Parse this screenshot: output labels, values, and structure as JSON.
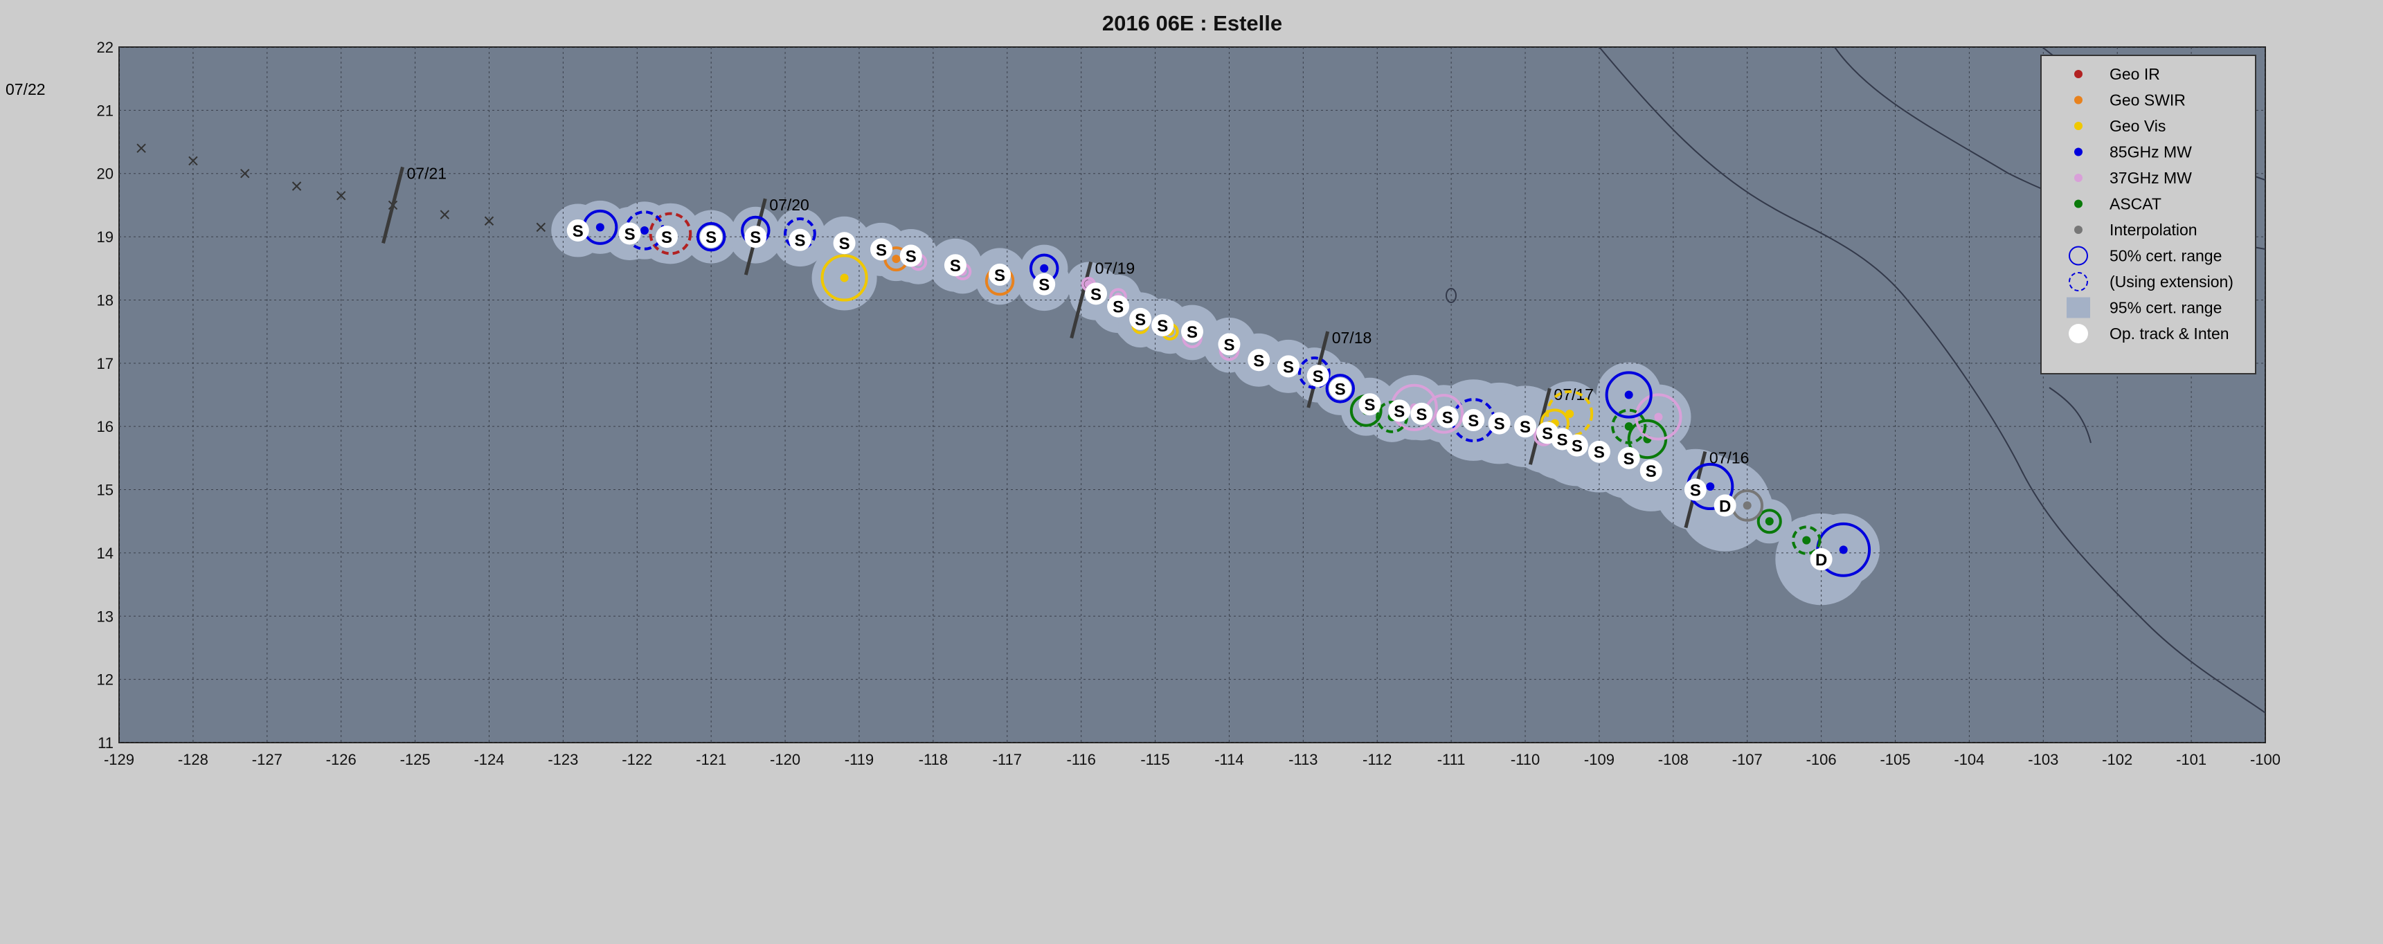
{
  "chart_data": {
    "type": "scatter",
    "title": "2016  06E :  Estelle",
    "corner_label": "07/22",
    "xlim": [
      -129,
      -100
    ],
    "ylim": [
      11,
      22
    ],
    "x_ticks": [
      "-129",
      "-128",
      "-127",
      "-126",
      "-125",
      "-124",
      "-123",
      "-122",
      "-121",
      "-120",
      "-119",
      "-118",
      "-117",
      "-116",
      "-115",
      "-114",
      "-113",
      "-112",
      "-111",
      "-110",
      "-109",
      "-108",
      "-107",
      "-106",
      "-105",
      "-104",
      "-103",
      "-102",
      "-101",
      "-100"
    ],
    "y_ticks": [
      "11",
      "12",
      "13",
      "14",
      "15",
      "16",
      "17",
      "18",
      "19",
      "20",
      "21",
      "22"
    ],
    "grid": true,
    "legend_position": "top-right",
    "colors": {
      "background": "#cccccc",
      "ocean": "#717d8e",
      "envelope": "#a4b1c6",
      "geo_ir": "#b22222",
      "geo_swir": "#e8821e",
      "geo_vis": "#f0c800",
      "mw85": "#0000dd",
      "mw37": "#d9a0d9",
      "ascat": "#0a7a0a",
      "interp": "#777777",
      "optrack": "#ffffff"
    },
    "legend": [
      {
        "label": "Geo IR",
        "key": "geo_ir",
        "symbol": "dot"
      },
      {
        "label": "Geo SWIR",
        "key": "geo_swir",
        "symbol": "dot"
      },
      {
        "label": "Geo Vis",
        "key": "geo_vis",
        "symbol": "dot"
      },
      {
        "label": "85GHz MW",
        "key": "mw85",
        "symbol": "dot"
      },
      {
        "label": "37GHz MW",
        "key": "mw37",
        "symbol": "dot"
      },
      {
        "label": "ASCAT",
        "key": "ascat",
        "symbol": "dot"
      },
      {
        "label": "Interpolation",
        "key": "interp",
        "symbol": "dot"
      },
      {
        "label": "50% cert. range",
        "key": "mw85",
        "symbol": "circle"
      },
      {
        "label": "(Using extension)",
        "key": "mw85",
        "symbol": "dashed-circle"
      },
      {
        "label": "95% cert. range",
        "key": "envelope",
        "symbol": "square"
      },
      {
        "label": "Op. track & Inten",
        "key": "optrack",
        "symbol": "big-dot"
      }
    ],
    "day_markers": [
      {
        "label": "07/16",
        "x": -107.7,
        "y": 15.0
      },
      {
        "label": "07/17",
        "x": -109.8,
        "y": 16.0
      },
      {
        "label": "07/18",
        "x": -112.8,
        "y": 16.9
      },
      {
        "label": "07/19",
        "x": -116.0,
        "y": 18.0
      },
      {
        "label": "07/20",
        "x": -120.4,
        "y": 19.0
      },
      {
        "label": "07/21",
        "x": -125.3,
        "y": 19.5
      }
    ],
    "op_track": [
      {
        "x": -106.0,
        "y": 13.9,
        "label": "D"
      },
      {
        "x": -107.3,
        "y": 14.75,
        "label": "D"
      },
      {
        "x": -107.7,
        "y": 15.0,
        "label": "S"
      },
      {
        "x": -108.3,
        "y": 15.3,
        "label": "S"
      },
      {
        "x": -108.6,
        "y": 15.5,
        "label": "S"
      },
      {
        "x": -109.0,
        "y": 15.6,
        "label": "S"
      },
      {
        "x": -109.3,
        "y": 15.7,
        "label": "S"
      },
      {
        "x": -109.5,
        "y": 15.8,
        "label": "S"
      },
      {
        "x": -109.7,
        "y": 15.9,
        "label": "S"
      },
      {
        "x": -110.0,
        "y": 16.0,
        "label": "S"
      },
      {
        "x": -110.35,
        "y": 16.05,
        "label": "S"
      },
      {
        "x": -110.7,
        "y": 16.1,
        "label": "S"
      },
      {
        "x": -111.05,
        "y": 16.15,
        "label": "S"
      },
      {
        "x": -111.4,
        "y": 16.2,
        "label": "S"
      },
      {
        "x": -111.7,
        "y": 16.25,
        "label": "S"
      },
      {
        "x": -112.1,
        "y": 16.35,
        "label": "S"
      },
      {
        "x": -112.5,
        "y": 16.6,
        "label": "S"
      },
      {
        "x": -112.8,
        "y": 16.8,
        "label": "S"
      },
      {
        "x": -113.2,
        "y": 16.95,
        "label": "S"
      },
      {
        "x": -113.6,
        "y": 17.05,
        "label": "S"
      },
      {
        "x": -114.0,
        "y": 17.3,
        "label": "S"
      },
      {
        "x": -114.5,
        "y": 17.5,
        "label": "S"
      },
      {
        "x": -114.9,
        "y": 17.6,
        "label": "S"
      },
      {
        "x": -115.2,
        "y": 17.7,
        "label": "S"
      },
      {
        "x": -115.5,
        "y": 17.9,
        "label": "S"
      },
      {
        "x": -115.8,
        "y": 18.1,
        "label": "S"
      },
      {
        "x": -116.5,
        "y": 18.25,
        "label": "S"
      },
      {
        "x": -117.1,
        "y": 18.4,
        "label": "S"
      },
      {
        "x": -117.7,
        "y": 18.55,
        "label": "S"
      },
      {
        "x": -118.3,
        "y": 18.7,
        "label": "S"
      },
      {
        "x": -118.7,
        "y": 18.8,
        "label": "S"
      },
      {
        "x": -119.2,
        "y": 18.9,
        "label": "S"
      },
      {
        "x": -119.8,
        "y": 18.95,
        "label": "S"
      },
      {
        "x": -120.4,
        "y": 19.0,
        "label": "S"
      },
      {
        "x": -121.0,
        "y": 19.0,
        "label": "S"
      },
      {
        "x": -121.6,
        "y": 19.0,
        "label": "S"
      },
      {
        "x": -122.1,
        "y": 19.05,
        "label": "S"
      },
      {
        "x": -122.8,
        "y": 19.1,
        "label": "S"
      }
    ],
    "extrapolated_track": [
      {
        "x": -123.3,
        "y": 19.15
      },
      {
        "x": -124.0,
        "y": 19.25
      },
      {
        "x": -124.6,
        "y": 19.35
      },
      {
        "x": -125.3,
        "y": 19.5
      },
      {
        "x": -126.0,
        "y": 19.65
      },
      {
        "x": -126.6,
        "y": 19.8
      },
      {
        "x": -127.3,
        "y": 20.0
      },
      {
        "x": -128.0,
        "y": 20.2
      },
      {
        "x": -128.7,
        "y": 20.4
      }
    ],
    "fixes": [
      {
        "type": "mw85",
        "x": -105.7,
        "y": 14.05,
        "r": 0.35,
        "dashed": false
      },
      {
        "type": "ascat",
        "x": -106.2,
        "y": 14.2,
        "r": 0.18,
        "dashed": true
      },
      {
        "type": "ascat",
        "x": -106.7,
        "y": 14.5,
        "r": 0.15,
        "dashed": false
      },
      {
        "type": "interp",
        "x": -107.0,
        "y": 14.75,
        "r": 0.2,
        "dashed": false
      },
      {
        "type": "mw85",
        "x": -107.5,
        "y": 15.05,
        "r": 0.3,
        "dashed": false
      },
      {
        "type": "ascat",
        "x": -108.35,
        "y": 15.8,
        "r": 0.25,
        "dashed": false
      },
      {
        "type": "mw37",
        "x": -108.2,
        "y": 16.15,
        "r": 0.3,
        "dashed": false
      },
      {
        "type": "ascat",
        "x": -108.6,
        "y": 16.0,
        "r": 0.22,
        "dashed": true
      },
      {
        "type": "mw85",
        "x": -108.6,
        "y": 16.5,
        "r": 0.3,
        "dashed": false
      },
      {
        "type": "geo_vis",
        "x": -109.4,
        "y": 16.2,
        "r": 0.3,
        "dashed": true
      },
      {
        "type": "geo_vis",
        "x": -109.6,
        "y": 16.05,
        "r": 0.18,
        "dashed": false
      },
      {
        "type": "mw37",
        "x": -109.75,
        "y": 15.85,
        "r": 0.12,
        "dashed": false
      },
      {
        "type": "mw85",
        "x": -110.7,
        "y": 16.1,
        "r": 0.28,
        "dashed": true
      },
      {
        "type": "mw37",
        "x": -111.1,
        "y": 16.2,
        "r": 0.25,
        "dashed": false
      },
      {
        "type": "mw37",
        "x": -111.5,
        "y": 16.3,
        "r": 0.3,
        "dashed": false
      },
      {
        "type": "ascat",
        "x": -111.8,
        "y": 16.15,
        "r": 0.2,
        "dashed": true
      },
      {
        "type": "ascat",
        "x": -112.15,
        "y": 16.25,
        "r": 0.2,
        "dashed": false
      },
      {
        "type": "mw85",
        "x": -112.5,
        "y": 16.6,
        "r": 0.18,
        "dashed": false
      },
      {
        "type": "mw85",
        "x": -112.85,
        "y": 16.85,
        "r": 0.2,
        "dashed": true
      },
      {
        "type": "ascat",
        "x": -113.2,
        "y": 16.95,
        "r": 0.12,
        "dashed": false
      },
      {
        "type": "ascat",
        "x": -113.6,
        "y": 17.05,
        "r": 0.12,
        "dashed": false
      },
      {
        "type": "mw37",
        "x": -114.0,
        "y": 17.2,
        "r": 0.12,
        "dashed": false
      },
      {
        "type": "mw37",
        "x": -114.5,
        "y": 17.4,
        "r": 0.12,
        "dashed": false
      },
      {
        "type": "geo_vis",
        "x": -114.8,
        "y": 17.5,
        "r": 0.1,
        "dashed": false
      },
      {
        "type": "geo_vis",
        "x": -115.2,
        "y": 17.6,
        "r": 0.1,
        "dashed": false
      },
      {
        "type": "mw37",
        "x": -115.5,
        "y": 18.05,
        "r": 0.1,
        "dashed": false
      },
      {
        "type": "mw37",
        "x": -115.9,
        "y": 18.25,
        "r": 0.08,
        "dashed": false
      },
      {
        "type": "mw85",
        "x": -116.5,
        "y": 18.5,
        "r": 0.18,
        "dashed": false
      },
      {
        "type": "geo_swir",
        "x": -117.1,
        "y": 18.3,
        "r": 0.18,
        "dashed": false
      },
      {
        "type": "mw37",
        "x": -117.6,
        "y": 18.45,
        "r": 0.1,
        "dashed": false
      },
      {
        "type": "mw37",
        "x": -118.2,
        "y": 18.6,
        "r": 0.1,
        "dashed": false
      },
      {
        "type": "geo_swir",
        "x": -118.5,
        "y": 18.65,
        "r": 0.15,
        "dashed": false
      },
      {
        "type": "geo_vis",
        "x": -119.2,
        "y": 18.35,
        "r": 0.3,
        "dashed": false
      },
      {
        "type": "mw85",
        "x": -119.8,
        "y": 19.05,
        "r": 0.2,
        "dashed": true
      },
      {
        "type": "mw85",
        "x": -120.4,
        "y": 19.1,
        "r": 0.18,
        "dashed": false
      },
      {
        "type": "mw85",
        "x": -121.0,
        "y": 19.0,
        "r": 0.18,
        "dashed": false
      },
      {
        "type": "geo_ir",
        "x": -121.55,
        "y": 19.05,
        "r": 0.27,
        "dashed": true
      },
      {
        "type": "mw85",
        "x": -121.9,
        "y": 19.1,
        "r": 0.25,
        "dashed": true
      },
      {
        "type": "mw85",
        "x": -122.5,
        "y": 19.15,
        "r": 0.22,
        "dashed": false
      }
    ]
  }
}
